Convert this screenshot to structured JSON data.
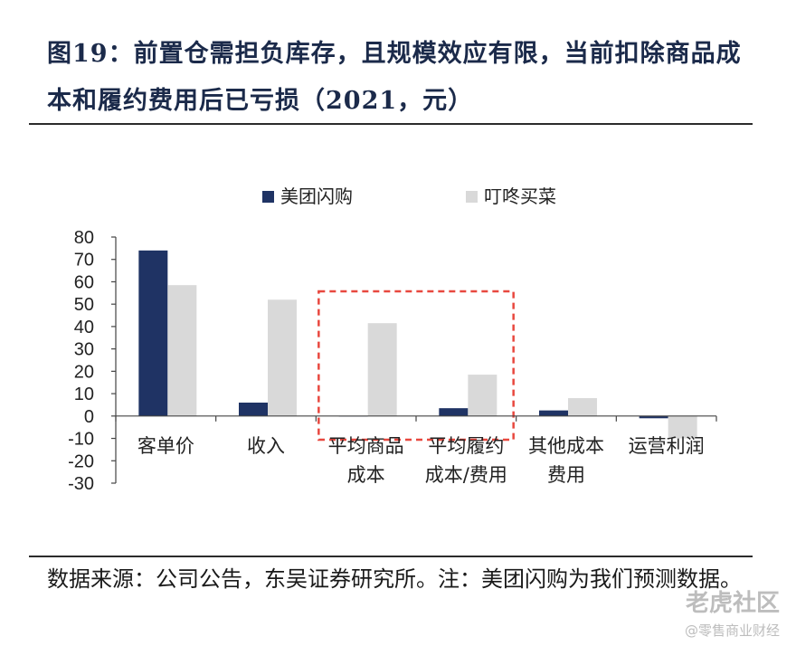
{
  "figure": {
    "title": "图19：前置仓需担负库存，且规模效应有限，当前扣除商品成本和履约费用后已亏损（2021，元）",
    "source": "数据来源：公司公告，东吴证券研究所。注：美团闪购为我们预测数据。"
  },
  "watermark": {
    "brand": "老虎社区",
    "handle": "@零售商业财经"
  },
  "colors": {
    "series1": "#1f3364",
    "series2": "#d9d9d9",
    "highlight": "#e8483f",
    "axis": "#444444"
  },
  "chart_data": {
    "type": "bar",
    "categories": [
      [
        "客单价"
      ],
      [
        "收入"
      ],
      [
        "平均商品",
        "成本"
      ],
      [
        "平均履约",
        "成本/费用"
      ],
      [
        "其他成本",
        "费用"
      ],
      [
        "运营利润"
      ]
    ],
    "series": [
      {
        "name": "美团闪购",
        "values": [
          74,
          6,
          0,
          3.5,
          2.5,
          -1
        ]
      },
      {
        "name": "叮咚买菜",
        "values": [
          58.5,
          52,
          41.5,
          18.5,
          8,
          -10
        ]
      }
    ],
    "ylim": [
      -30,
      80
    ],
    "yticks": [
      80,
      70,
      60,
      50,
      40,
      30,
      20,
      10,
      0,
      -10,
      -20,
      -30
    ],
    "legend": "top-center",
    "grid": false,
    "highlight_categories": [
      2,
      3
    ]
  }
}
